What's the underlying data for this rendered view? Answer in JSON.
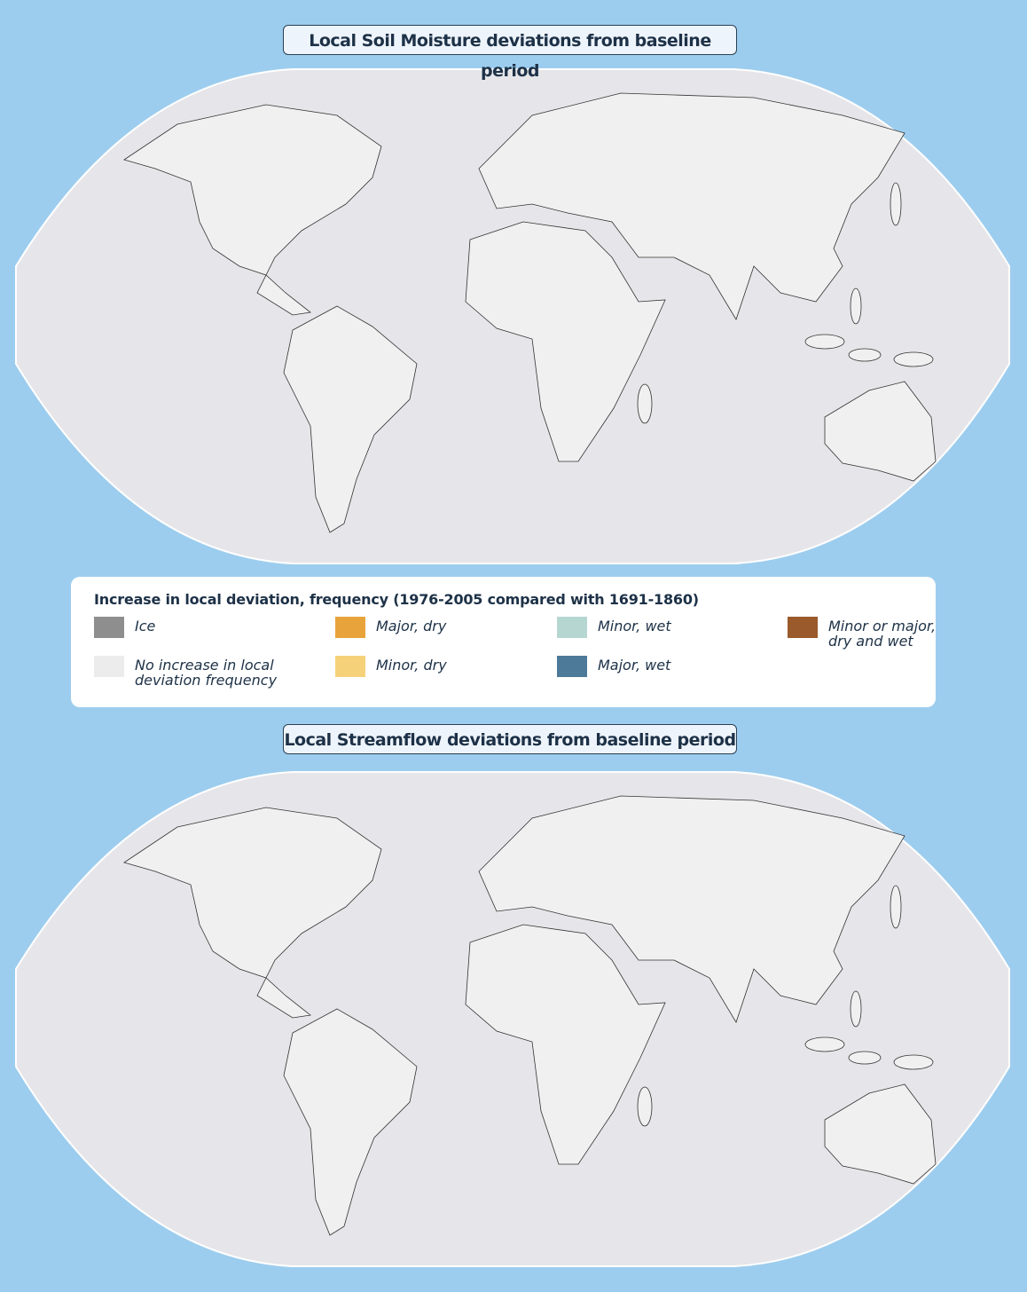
{
  "maps": [
    {
      "title": "Local Soil Moisture deviations from baseline period"
    },
    {
      "title": "Local Streamflow deviations from baseline period"
    }
  ],
  "legend": {
    "title": "Increase in local deviation, frequency (1976-2005 compared with 1691-1860)",
    "items": [
      {
        "label": "Ice",
        "color": "#8e8e8e"
      },
      {
        "label": "No increase in local deviation frequency",
        "color": "#ececec"
      },
      {
        "label": "Major, dry",
        "color": "#e8a43a"
      },
      {
        "label": "Minor, dry",
        "color": "#f5d27a"
      },
      {
        "label": "Minor, wet",
        "color": "#b6d6d2"
      },
      {
        "label": "Major, wet",
        "color": "#4d7a99"
      },
      {
        "label": "Minor or major, dry and wet",
        "color": "#9a5a2b"
      }
    ]
  }
}
